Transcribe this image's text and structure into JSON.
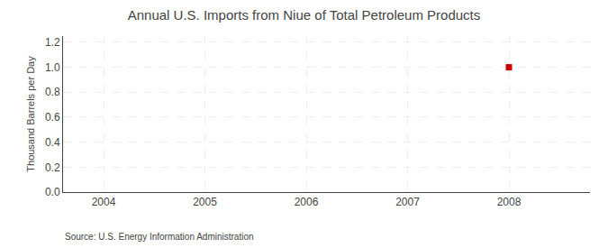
{
  "chart_data": {
    "type": "scatter",
    "title": "Annual U.S. Imports from Niue of Total Petroleum Products",
    "ylabel": "Thousand Barrels per Day",
    "annotations": [
      "Source: U.S. Energy Information Administration"
    ],
    "x": [
      2008
    ],
    "values": [
      1.0
    ],
    "color": "#cc0000",
    "marker": "square",
    "xlim": [
      2003.6,
      2008.8
    ],
    "xticks": [
      2004,
      2005,
      2006,
      2007,
      2008
    ],
    "ylim": [
      0,
      1.25
    ],
    "yticks": [
      {
        "value": 0.0,
        "label": "0.0"
      },
      0.2,
      0.4,
      0.6,
      0.8,
      {
        "value": 1.0,
        "label": "1.0"
      },
      1.2
    ],
    "grid": true
  }
}
